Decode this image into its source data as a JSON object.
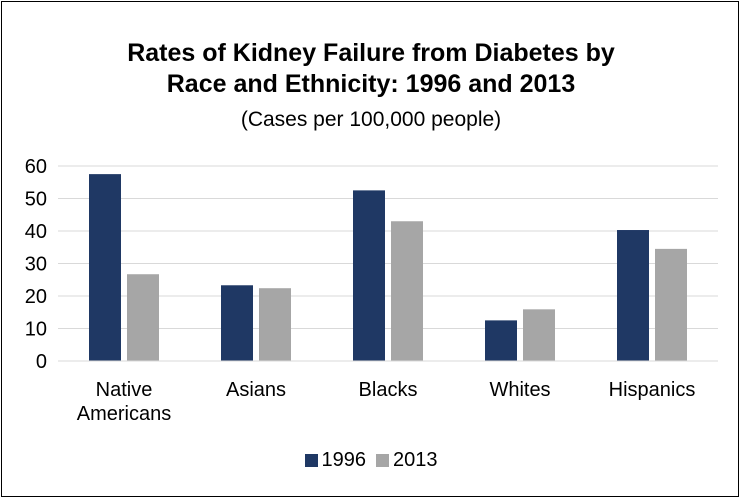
{
  "chart_data": {
    "type": "bar",
    "title": "Rates of Kidney Failure from Diabetes by Race and Ethnicity:  1996 and 2013",
    "title_lines": [
      "Rates of Kidney Failure from Diabetes by",
      "Race and Ethnicity:  1996 and 2013"
    ],
    "subtitle": "(Cases per 100,000 people)",
    "categories": [
      [
        "Native",
        "Americans"
      ],
      [
        "Asians"
      ],
      [
        "Blacks"
      ],
      [
        "Whites"
      ],
      [
        "Hispanics"
      ]
    ],
    "series": [
      {
        "name": "1996",
        "color": "#1f3864",
        "values": [
          57.5,
          23.3,
          52.5,
          12.5,
          40.3
        ]
      },
      {
        "name": "2013",
        "color": "#a6a6a6",
        "values": [
          26.7,
          22.4,
          43.0,
          15.9,
          34.5
        ]
      }
    ],
    "ylim": [
      0,
      60
    ],
    "yticks": [
      0,
      10,
      20,
      30,
      40,
      50,
      60
    ],
    "grid": true,
    "gridColor": "#d9d9d9",
    "legend": "bottom"
  }
}
